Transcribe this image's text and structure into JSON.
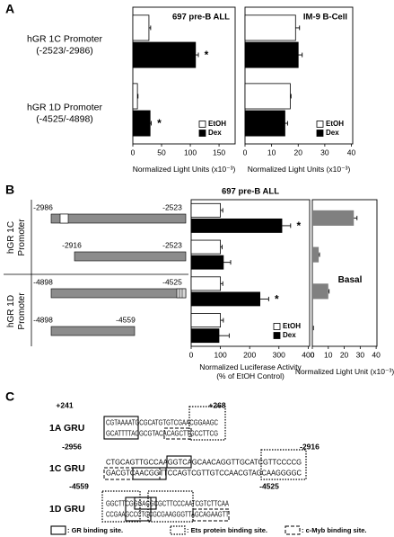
{
  "panel_labels": [
    "A",
    "B",
    "C"
  ],
  "chart_data": [
    {
      "type": "bar",
      "orientation": "horizontal",
      "title": "697 pre-B ALL",
      "categories": [
        "hGR 1C Promoter\n(-2523/-2986)",
        "hGR 1D Promoter\n(-4525/-4898)"
      ],
      "series": [
        {
          "name": "EtOH",
          "color": "#ffffff",
          "values": [
            28,
            8
          ],
          "errors": [
            3,
            1
          ]
        },
        {
          "name": "Dex",
          "color": "#000000",
          "values": [
            109,
            30
          ],
          "errors": [
            5,
            2
          ],
          "annotations": [
            "*",
            "*"
          ]
        }
      ],
      "xlim": [
        0,
        178
      ],
      "xticks": [
        0,
        50,
        100,
        150
      ],
      "xlabel": "Normalized Light Units (x10⁻³)",
      "legend": "lower right"
    },
    {
      "type": "bar",
      "orientation": "horizontal",
      "title": "IM-9 B-Cell",
      "series": [
        {
          "name": "EtOH",
          "color": "#ffffff",
          "values": [
            19,
            17
          ],
          "errors": [
            1.5,
            0.3
          ]
        },
        {
          "name": "Dex",
          "color": "#000000",
          "values": [
            20,
            15
          ],
          "errors": [
            1.5,
            1
          ]
        }
      ],
      "xlim": [
        0,
        40.5
      ],
      "xticks": [
        0,
        10,
        20,
        30,
        40
      ],
      "xlabel": "Normalized Light Units (x10⁻³)",
      "legend": "lower right"
    },
    {
      "type": "bar",
      "orientation": "horizontal",
      "title": "697 pre-B ALL",
      "series": [
        {
          "name": "EtOH",
          "color": "#ffffff",
          "values": [
            100,
            100,
            100,
            100
          ],
          "errors": [
            8,
            6,
            8,
            10
          ]
        },
        {
          "name": "Dex",
          "color": "#000000",
          "values": [
            310,
            110,
            235,
            95
          ],
          "errors": [
            30,
            25,
            30,
            35
          ],
          "annotations": [
            "*",
            null,
            "*",
            null
          ]
        }
      ],
      "xlim": [
        0,
        405
      ],
      "xticks": [
        0,
        100,
        200,
        300,
        400
      ],
      "xlabel": "Normalized Luciferase Activity\n(% of EtOH Control)",
      "legend": "lower right"
    },
    {
      "type": "bar",
      "orientation": "horizontal",
      "annotation": "Basal",
      "values": [
        26,
        4,
        10,
        0.5
      ],
      "errors": [
        2,
        0.5,
        0.5,
        0.2
      ],
      "color": "#808080",
      "xlim": [
        0,
        40.5
      ],
      "xticks": [
        0,
        10,
        20,
        30,
        40
      ],
      "xlabel": "Normalized Light Unit (x10⁻³)"
    }
  ],
  "constructs": {
    "groups": [
      "hGR 1C\nPromoter",
      "hGR 1D\nPromoter"
    ],
    "items": [
      {
        "start": "-2986",
        "end": "-2523"
      },
      {
        "start": "-2916",
        "end": "-2523"
      },
      {
        "start": "-4898",
        "end": "-4525"
      },
      {
        "start": "-4898",
        "end": "-4559"
      }
    ]
  },
  "gru": {
    "items": [
      {
        "label": "1A GRU",
        "start": "+241",
        "end": "+268",
        "top": "CGTAAAATGCGCATGTGTCGAACGGAAGC",
        "bottom": "GCATTTTACGCGTACACAGCTTGCCTTCG"
      },
      {
        "label": "1C GRU",
        "start": "-2956",
        "end": "-2916",
        "top": "CTGCAGTTGCCAAGGTCAGCAACAGGTTGCATCGTTCCCCG",
        "bottom": "GACGTCAACGGTTCCAGTCGTTGTCCAACGTAGCAAGGGGC"
      },
      {
        "label": "1D GRU",
        "start": "-4559",
        "end": "-4525",
        "top": "GGCTTCGGGACGCGCTTCCCAATCGTCTTCAA",
        "bottom": "CCGAAGCCCTGCGCGAAGGGTTAGCAGAAGTT"
      }
    ],
    "legend": [
      ": GR binding site.",
      ": Ets protein binding site.",
      ": c-Myb binding site."
    ]
  }
}
